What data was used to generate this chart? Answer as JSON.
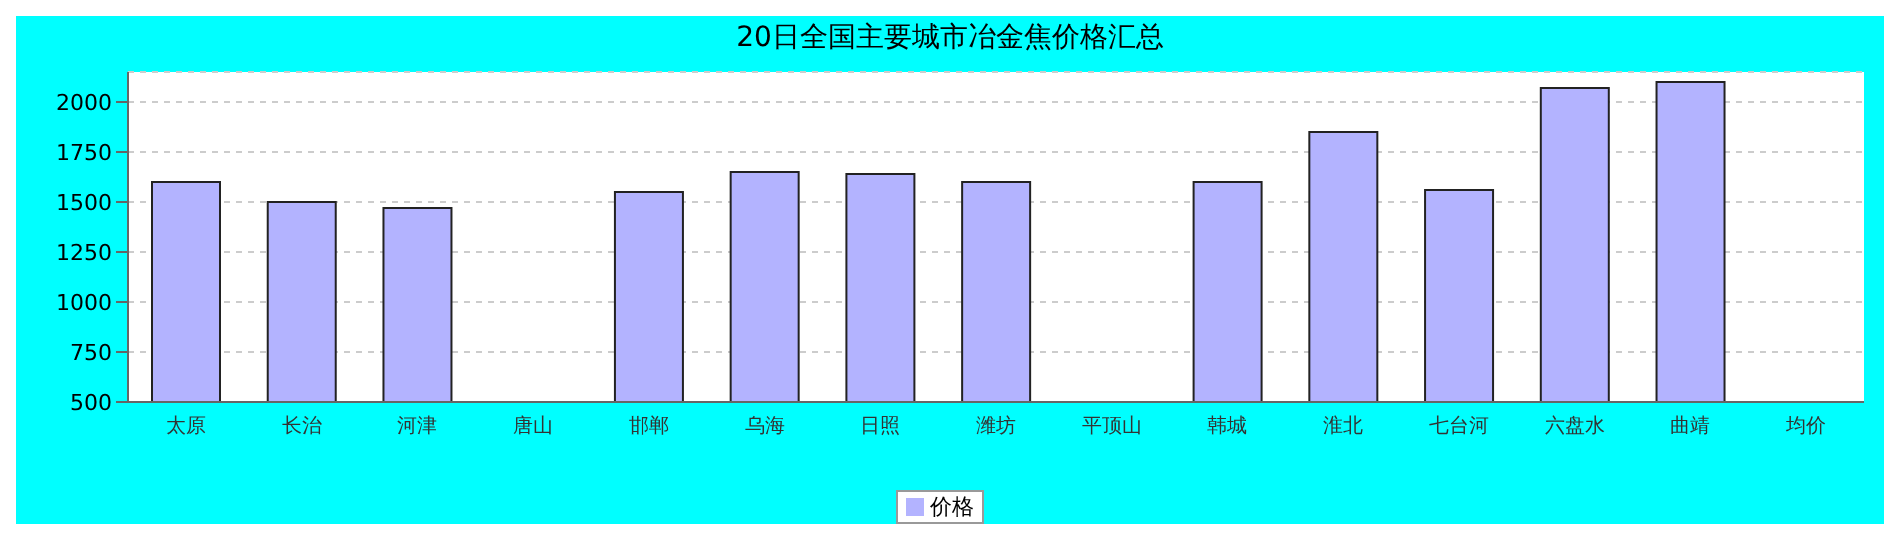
{
  "chart_data": {
    "type": "bar",
    "title": "20日全国主要城市冶金焦价格汇总",
    "categories": [
      "太原",
      "长治",
      "河津",
      "唐山",
      "邯郸",
      "乌海",
      "日照",
      "潍坊",
      "平顶山",
      "韩城",
      "淮北",
      "七台河",
      "六盘水",
      "曲靖",
      "均价"
    ],
    "series": [
      {
        "name": "价格",
        "color": "#b3b3ff",
        "values": [
          1600,
          1500,
          1470,
          null,
          1550,
          1650,
          1640,
          1600,
          null,
          1600,
          1850,
          1560,
          2070,
          2100,
          null
        ]
      }
    ],
    "ylim": [
      500,
      2150
    ],
    "yticks": [
      500,
      750,
      1000,
      1250,
      1500,
      1750,
      2000
    ],
    "grid": "y",
    "legend": "bottom"
  }
}
